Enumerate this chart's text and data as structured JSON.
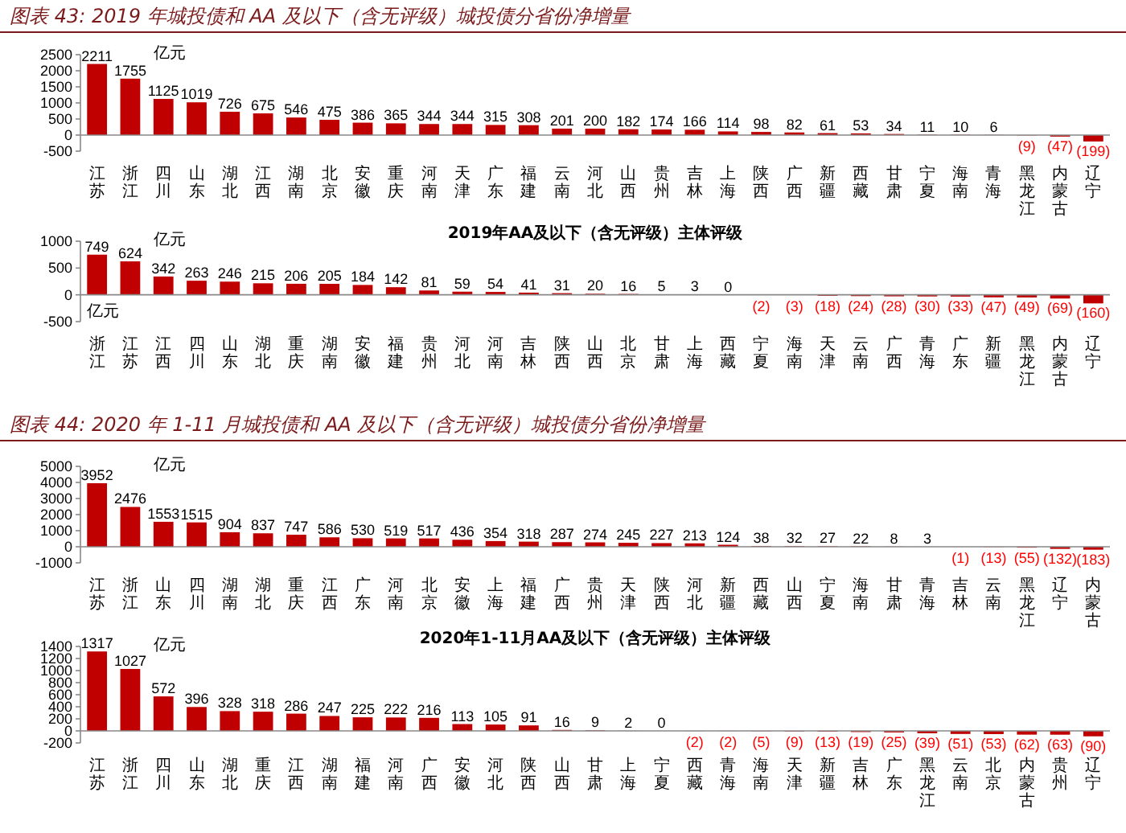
{
  "chart_data": [
    {
      "type": "bar",
      "title": "图表 43: 2019 年城投债和 AA 及以下（含无评级）城投债分省份净增量",
      "categories": [
        "江苏",
        "浙江",
        "四川",
        "山东",
        "湖北",
        "江西",
        "湖南",
        "北京",
        "安徽",
        "重庆",
        "河南",
        "天津",
        "广东",
        "福建",
        "云南",
        "河北",
        "山西",
        "贵州",
        "吉林",
        "上海",
        "陕西",
        "广西",
        "新疆",
        "西藏",
        "甘肃",
        "宁夏",
        "海南",
        "青海",
        "黑龙江",
        "内蒙古",
        "辽宁"
      ],
      "values": [
        2211,
        1755,
        1125,
        1019,
        726,
        675,
        546,
        475,
        386,
        365,
        344,
        344,
        315,
        308,
        201,
        200,
        182,
        174,
        166,
        114,
        98,
        82,
        61,
        53,
        34,
        11,
        10,
        6,
        -9,
        -47,
        -199
      ],
      "value_labels": [
        "2211",
        "1755",
        "1125",
        "1019",
        "726",
        "675",
        "546",
        "475",
        "386",
        "365",
        "344",
        "344",
        "315",
        "308",
        "201",
        "200",
        "182",
        "174",
        "166",
        "114",
        "98",
        "82",
        "61",
        "53",
        "34",
        "11",
        "10",
        "6",
        "(9)",
        "(47)",
        "(199)"
      ],
      "color": "#c00000",
      "ylim": [
        -500,
        2500
      ],
      "yticks": [
        -500,
        0,
        500,
        1000,
        1500,
        2000,
        2500
      ],
      "annotations": [
        "亿元"
      ]
    },
    {
      "type": "bar",
      "title": "2019年AA及以下（含无评级）主体评级",
      "categories": [
        "浙江",
        "江苏",
        "江西",
        "四川",
        "山东",
        "湖北",
        "重庆",
        "湖南",
        "安徽",
        "福建",
        "贵州",
        "河北",
        "河南",
        "吉林",
        "陕西",
        "山西",
        "北京",
        "甘肃",
        "上海",
        "西藏",
        "宁夏",
        "海南",
        "天津",
        "云南",
        "广西",
        "青海",
        "广东",
        "新疆",
        "黑龙江",
        "内蒙古",
        "辽宁"
      ],
      "values": [
        749,
        624,
        342,
        263,
        246,
        215,
        206,
        205,
        184,
        142,
        81,
        59,
        54,
        41,
        31,
        20,
        16,
        5,
        3,
        0,
        -2,
        -3,
        -18,
        -24,
        -28,
        -30,
        -33,
        -47,
        -49,
        -69,
        -160
      ],
      "value_labels": [
        "749",
        "624",
        "342",
        "263",
        "246",
        "215",
        "206",
        "205",
        "184",
        "142",
        "81",
        "59",
        "54",
        "41",
        "31",
        "20",
        "16",
        "5",
        "3",
        "0",
        "(2)",
        "(3)",
        "(18)",
        "(24)",
        "(28)",
        "(30)",
        "(33)",
        "(47)",
        "(49)",
        "(69)",
        "(160)"
      ],
      "color": "#c00000",
      "ylim": [
        -500,
        1000
      ],
      "yticks": [
        -500,
        0,
        500,
        1000
      ],
      "annotations": [
        "亿元",
        "亿元"
      ]
    },
    {
      "type": "bar",
      "title": "图表 44: 2020 年 1-11 月城投债和 AA 及以下（含无评级）城投债分省份净增量",
      "categories": [
        "江苏",
        "浙江",
        "山东",
        "四川",
        "湖南",
        "湖北",
        "重庆",
        "江西",
        "广东",
        "河南",
        "北京",
        "安徽",
        "上海",
        "福建",
        "广西",
        "贵州",
        "天津",
        "陕西",
        "河北",
        "新疆",
        "西藏",
        "山西",
        "宁夏",
        "海南",
        "甘肃",
        "青海",
        "吉林",
        "云南",
        "黑龙江",
        "辽宁",
        "内蒙古"
      ],
      "values": [
        3952,
        2476,
        1553,
        1515,
        904,
        837,
        747,
        586,
        530,
        519,
        517,
        436,
        354,
        318,
        287,
        274,
        245,
        227,
        213,
        124,
        38,
        32,
        27,
        22,
        8,
        3,
        -1,
        -13,
        -55,
        -132,
        -183
      ],
      "value_labels": [
        "3952",
        "2476",
        "1553",
        "1515",
        "904",
        "837",
        "747",
        "586",
        "530",
        "519",
        "517",
        "436",
        "354",
        "318",
        "287",
        "274",
        "245",
        "227",
        "213",
        "124",
        "38",
        "32",
        "27",
        "22",
        "8",
        "3",
        "(1)",
        "(13)",
        "(55)",
        "(132)",
        "(183)"
      ],
      "color": "#c00000",
      "ylim": [
        -1000,
        5000
      ],
      "yticks": [
        -1000,
        0,
        1000,
        2000,
        3000,
        4000,
        5000
      ],
      "annotations": [
        "亿元"
      ]
    },
    {
      "type": "bar",
      "title": "2020年1-11月AA及以下（含无评级）主体评级",
      "categories": [
        "江苏",
        "浙江",
        "四川",
        "山东",
        "湖北",
        "重庆",
        "江西",
        "湖南",
        "福建",
        "河南",
        "广西",
        "安徽",
        "河北",
        "陕西",
        "山西",
        "甘肃",
        "上海",
        "宁夏",
        "西藏",
        "青海",
        "海南",
        "天津",
        "新疆",
        "吉林",
        "广东",
        "黑龙江",
        "云南",
        "北京",
        "内蒙古",
        "贵州",
        "辽宁"
      ],
      "values": [
        1317,
        1027,
        572,
        396,
        328,
        318,
        286,
        247,
        225,
        222,
        216,
        113,
        105,
        91,
        16,
        9,
        2,
        0,
        -2,
        -2,
        -5,
        -9,
        -13,
        -19,
        -25,
        -39,
        -51,
        -53,
        -62,
        -63,
        -90
      ],
      "value_labels": [
        "1317",
        "1027",
        "572",
        "396",
        "328",
        "318",
        "286",
        "247",
        "225",
        "222",
        "216",
        "113",
        "105",
        "91",
        "16",
        "9",
        "2",
        "0",
        "(2)",
        "(2)",
        "(5)",
        "(9)",
        "(13)",
        "(19)",
        "(25)",
        "(39)",
        "(51)",
        "(53)",
        "(62)",
        "(63)",
        "(90)"
      ],
      "color": "#c00000",
      "ylim": [
        -200,
        1400
      ],
      "yticks": [
        -200,
        0,
        200,
        400,
        600,
        800,
        1000,
        1200,
        1400
      ],
      "annotations": [
        "亿元"
      ]
    }
  ]
}
